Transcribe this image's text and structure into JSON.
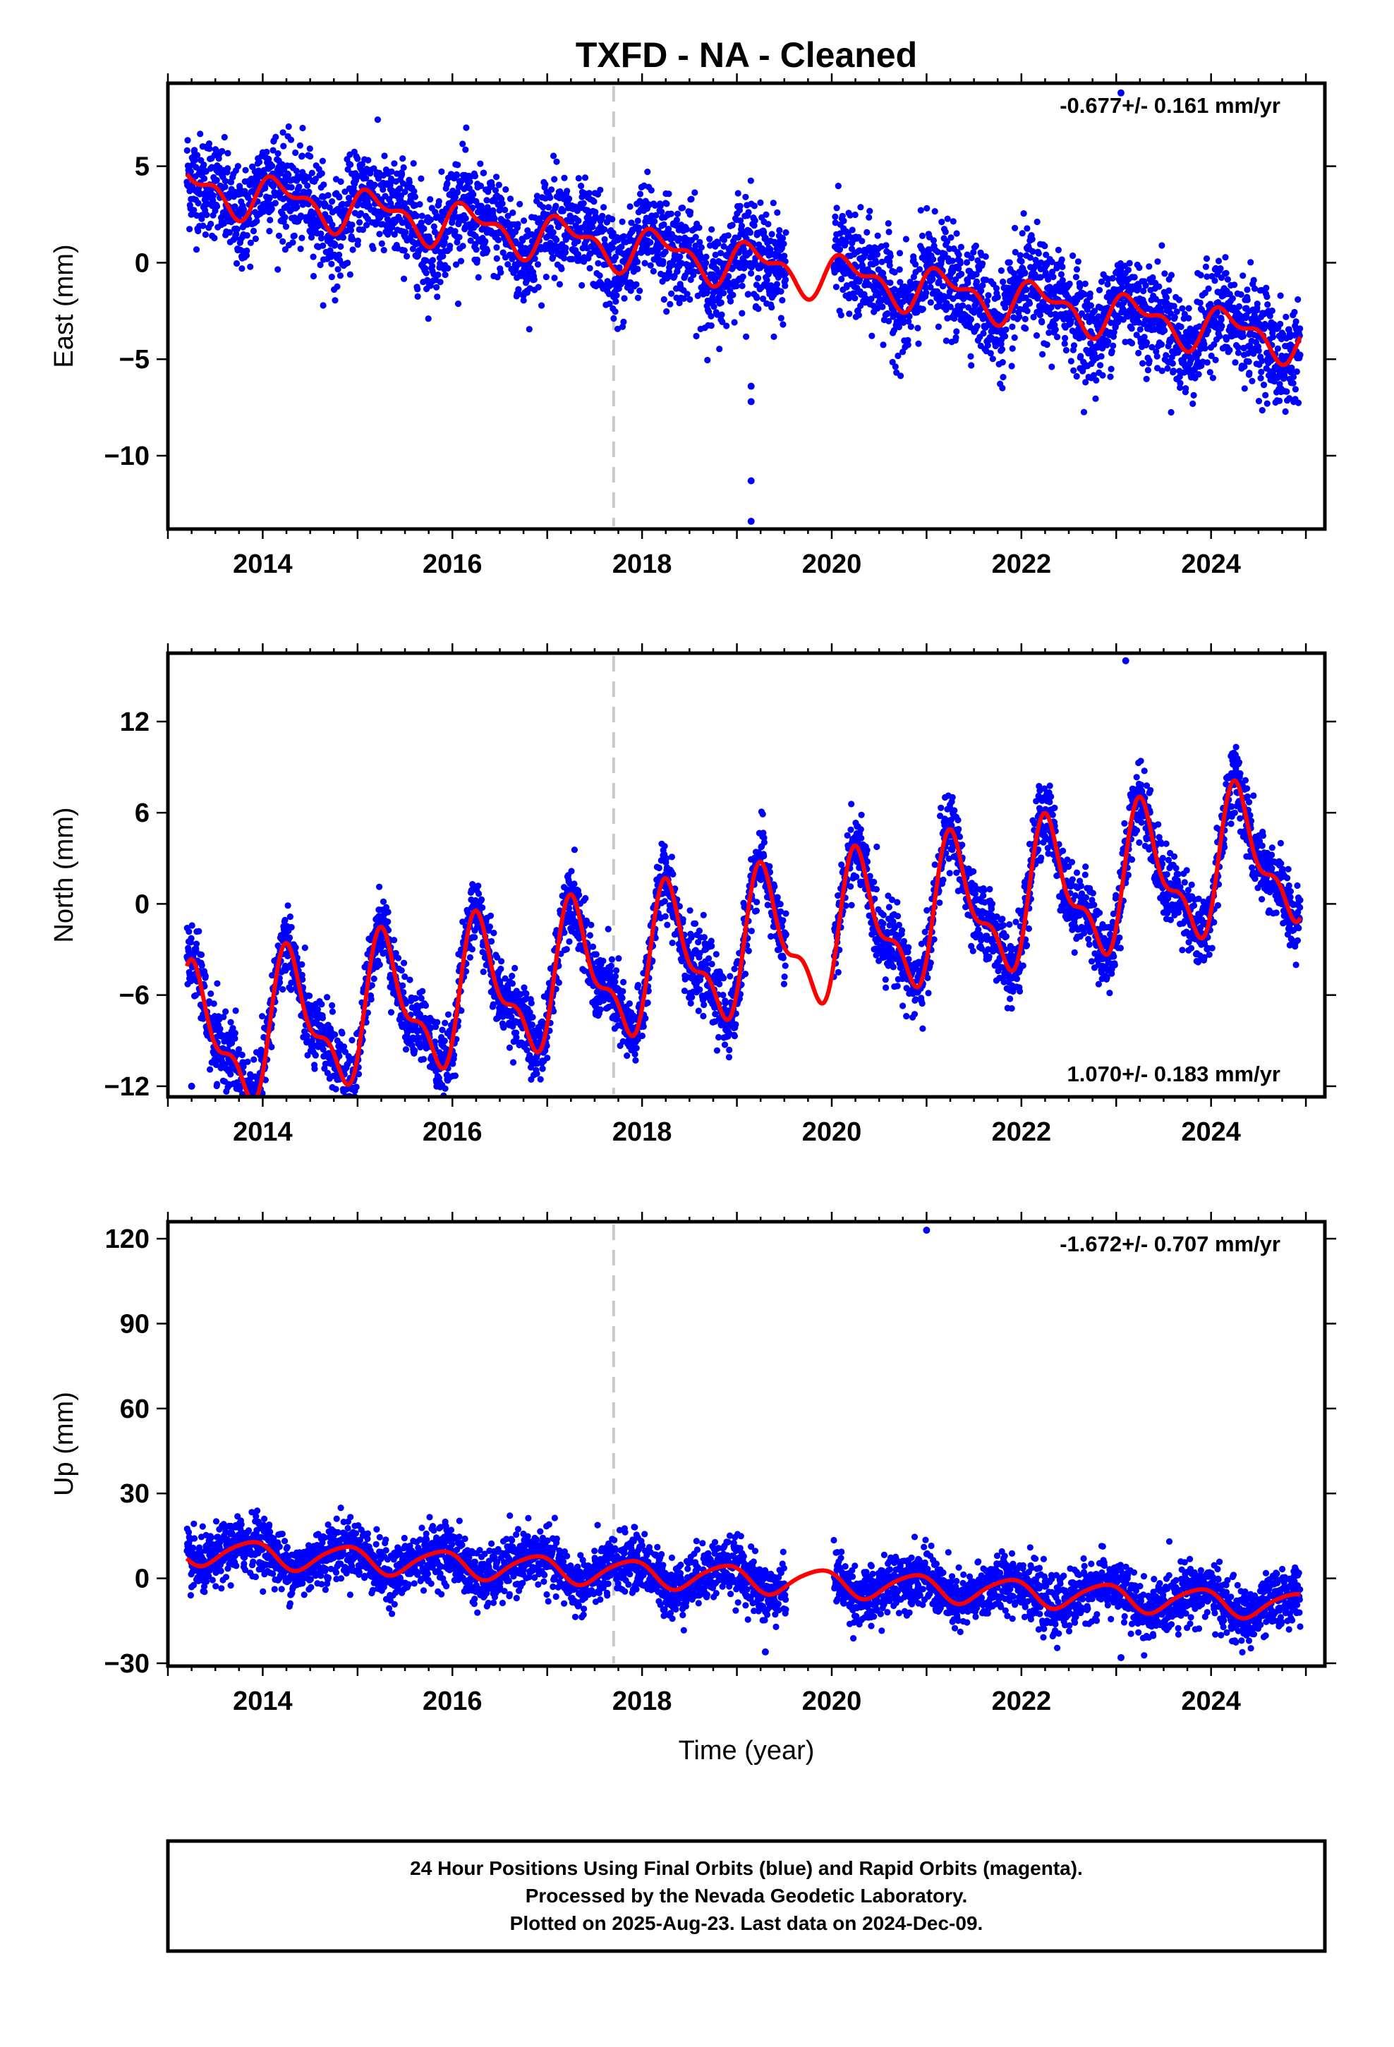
{
  "figure": {
    "title": "TXFD  - NA - Cleaned",
    "footer_lines": [
      "24 Hour Positions Using Final Orbits (blue) and Rapid Orbits (magenta).",
      "Processed by the Nevada Geodetic Laboratory.",
      "Plotted on 2025-Aug-23. Last data on 2024-Dec-09."
    ],
    "colors": {
      "points": "#0000ff",
      "model": "#ff0000",
      "event_line": "#c8c8c8",
      "axes": "#000000"
    }
  },
  "chart_data": [
    {
      "type": "scatter",
      "component": "east",
      "ylabel": "East (mm)",
      "xlabel": "",
      "rate_label": "-0.677+/- 0.161 mm/yr",
      "xlim": [
        2013.0,
        2025.2
      ],
      "ylim": [
        -13.8,
        9.3
      ],
      "xticks": [
        "2014",
        "2016",
        "2018",
        "2020",
        "2022",
        "2024"
      ],
      "yticks": [
        "5",
        "0",
        "−5",
        "−10"
      ],
      "ytick_values": [
        5,
        0,
        -5,
        -10
      ],
      "event_line_x": 2017.7,
      "model": {
        "rate": -0.677,
        "offset": 0.0,
        "ref_year": 2019.0,
        "annual_cos": 0.3,
        "annual_sin": 0.9,
        "semi_cos": 0.5,
        "semi_sin": 0.2
      },
      "scatter_spread": 1.3,
      "data_gap": [
        2019.52,
        2020.02
      ],
      "x_range": [
        2013.2,
        2024.94
      ],
      "outliers": [
        [
          2019.15,
          -6.4
        ],
        [
          2019.15,
          -7.2
        ],
        [
          2019.15,
          -11.3
        ],
        [
          2019.15,
          -13.4
        ],
        [
          2023.05,
          8.8
        ]
      ]
    },
    {
      "type": "scatter",
      "component": "north",
      "ylabel": "North (mm)",
      "xlabel": "",
      "rate_label": "1.070+/- 0.183 mm/yr",
      "xlim": [
        2013.0,
        2025.2
      ],
      "ylim": [
        -12.7,
        16.5
      ],
      "xticks": [
        "2014",
        "2016",
        "2018",
        "2020",
        "2022",
        "2024"
      ],
      "yticks": [
        "12",
        "6",
        "0",
        "−6",
        "−12"
      ],
      "ytick_values": [
        12,
        6,
        0,
        -6,
        -12
      ],
      "event_line_x": 2017.7,
      "model": {
        "rate": 1.07,
        "offset": -3.0,
        "ref_year": 2019.0,
        "annual_cos": -1.2,
        "annual_sin": 3.9,
        "semi_cos": -1.6,
        "semi_sin": 0.8
      },
      "scatter_spread": 1.2,
      "data_gap": [
        2019.52,
        2020.02
      ],
      "x_range": [
        2013.2,
        2024.94
      ],
      "outliers": [
        [
          2023.1,
          16.0
        ],
        [
          2015.95,
          -11.6
        ],
        [
          2013.25,
          -12.0
        ]
      ]
    },
    {
      "type": "scatter",
      "component": "up",
      "ylabel": "Up (mm)",
      "xlabel": "Time (year)",
      "rate_label": "-1.672+/- 0.707 mm/yr",
      "xlim": [
        2013.0,
        2025.2
      ],
      "ylim": [
        -31.0,
        126.0
      ],
      "xticks": [
        "2014",
        "2016",
        "2018",
        "2020",
        "2022",
        "2024"
      ],
      "yticks": [
        "120",
        "90",
        "60",
        "30",
        "0",
        "−30"
      ],
      "ytick_values": [
        120,
        90,
        60,
        30,
        0,
        -30
      ],
      "event_line_x": 2017.7,
      "model": {
        "rate": -1.672,
        "offset": 0.0,
        "ref_year": 2019.0,
        "annual_cos": 3.0,
        "annual_sin": -3.5,
        "semi_cos": 0.6,
        "semi_sin": 0.4
      },
      "scatter_spread": 5.0,
      "data_gap": [
        2019.52,
        2020.02
      ],
      "x_range": [
        2013.2,
        2024.94
      ],
      "outliers": [
        [
          2021.0,
          123.0
        ],
        [
          2023.05,
          -28.0
        ],
        [
          2019.3,
          -26.0
        ]
      ]
    }
  ]
}
